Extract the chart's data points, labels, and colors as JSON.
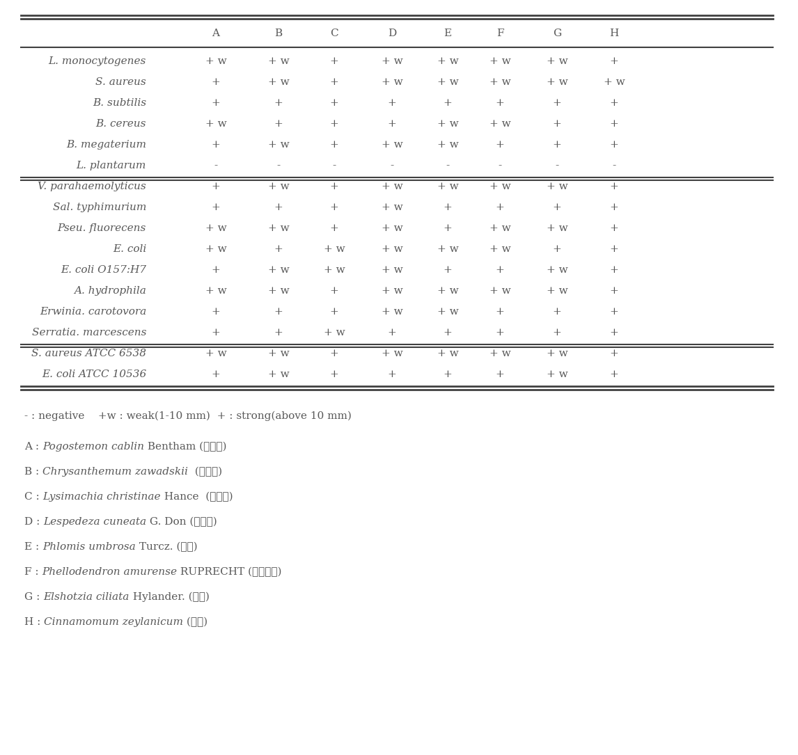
{
  "columns": [
    "A",
    "B",
    "C",
    "D",
    "E",
    "F",
    "G",
    "H"
  ],
  "rows": [
    [
      "L. monocytogenes",
      "+w",
      "+w",
      "+",
      "+w",
      "+w",
      "+w",
      "+w",
      "+"
    ],
    [
      "S. aureus",
      "+",
      "+w",
      "+",
      "+w",
      "+w",
      "+w",
      "+w",
      "+w"
    ],
    [
      "B. subtilis",
      "+",
      "+",
      "+",
      "+",
      "+",
      "+",
      "+",
      "+"
    ],
    [
      "B. cereus",
      "+w",
      "+",
      "+",
      "+",
      "+w",
      "+w",
      "+",
      "+"
    ],
    [
      "B. megaterium",
      "+",
      "+w",
      "+",
      "+w",
      "+w",
      "+",
      "+",
      "+"
    ],
    [
      "L. plantarum",
      "-",
      "-",
      "-",
      "-",
      "-",
      "-",
      "-",
      "-"
    ],
    [
      "V. parahaemolyticus",
      "+",
      "+w",
      "+",
      "+w",
      "+w",
      "+w",
      "+w",
      "+"
    ],
    [
      "Sal. typhimurium",
      "+",
      "+",
      "+",
      "+w",
      "+",
      "+",
      "+",
      "+"
    ],
    [
      "Pseu. fluorecens",
      "+w",
      "+w",
      "+",
      "+w",
      "+",
      "+w",
      "+w",
      "+"
    ],
    [
      "E. coli",
      "+w",
      "+",
      "+w",
      "+w",
      "+w",
      "+w",
      "+",
      "+"
    ],
    [
      "E. coli O157:H7",
      "+",
      "+w",
      "+w",
      "+w",
      "+",
      "+",
      "+w",
      "+"
    ],
    [
      "A. hydrophila",
      "+w",
      "+w",
      "+",
      "+w",
      "+w",
      "+w",
      "+w",
      "+"
    ],
    [
      "Erwinia. carotovora",
      "+",
      "+",
      "+",
      "+w",
      "+w",
      "+",
      "+",
      "+"
    ],
    [
      "Serratia. marcescens",
      "+",
      "+",
      "+w",
      "+",
      "+",
      "+",
      "+",
      "+"
    ],
    [
      "S. aureus ATCC 6538",
      "+w",
      "+w",
      "+",
      "+w",
      "+w",
      "+w",
      "+w",
      "+"
    ],
    [
      "E. coli ATCC 10536",
      "+",
      "+w",
      "+",
      "+",
      "+",
      "+",
      "+w",
      "+"
    ]
  ],
  "section_breaks": [
    5,
    13
  ],
  "bg_color": "#ffffff",
  "text_color": "#585858",
  "cell_color": "#585858",
  "font_size": 11,
  "header_font_size": 11,
  "legend_font_size": 11,
  "legend_formats": [
    [
      "A : ",
      "Pogostemon cablin",
      " Bentham (광경향)"
    ],
    [
      "B : ",
      "Chrysanthemum zawadskii",
      "  (구절초)"
    ],
    [
      "C : ",
      "Lysimachia christinae",
      " Hance  (금전초)"
    ],
    [
      "D : ",
      "Lespedeza cuneata",
      " G. Don (비수리)"
    ],
    [
      "E : ",
      "Phlomis umbrosa",
      " Turcz. (속단)"
    ],
    [
      "F : ",
      "Phellodendron amurense",
      " RUPRECHT (황벽나무)"
    ],
    [
      "G : ",
      "Elshotzia ciliata",
      " Hylander. (향유)"
    ],
    [
      "H : ",
      "Cinnamomum zeylanicum",
      " (계피)"
    ]
  ],
  "legend_line0": "- : negative    +w : weak(1-10 mm)  + : strong(above 10 mm)"
}
